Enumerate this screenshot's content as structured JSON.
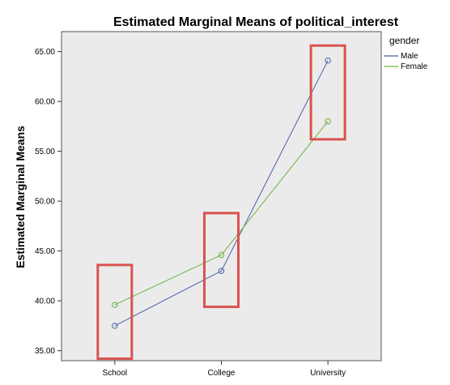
{
  "chart_data": {
    "type": "line",
    "title": "Estimated Marginal Means of political_interest",
    "ylabel": "Estimated Marginal Means",
    "xlabel": "",
    "categories": [
      "School",
      "College",
      "University"
    ],
    "ylim": [
      34,
      67
    ],
    "yticks": [
      "35.00",
      "40.00",
      "45.00",
      "50.00",
      "55.00",
      "60.00",
      "65.00"
    ],
    "grid": false,
    "legend": {
      "title": "gender",
      "placement": "top-right"
    },
    "series": [
      {
        "name": "Male",
        "color": "#4a5fa8",
        "values": [
          37.5,
          43.0,
          64.1
        ]
      },
      {
        "name": "Female",
        "color": "#6db33f",
        "values": [
          39.6,
          44.6,
          58.0
        ]
      }
    ],
    "highlight_color": "#d9534f",
    "highlights": [
      {
        "category": "School",
        "ymin": 34.2,
        "ymax": 43.6
      },
      {
        "category": "College",
        "ymin": 39.4,
        "ymax": 48.8
      },
      {
        "category": "University",
        "ymin": 56.2,
        "ymax": 65.6
      }
    ]
  }
}
